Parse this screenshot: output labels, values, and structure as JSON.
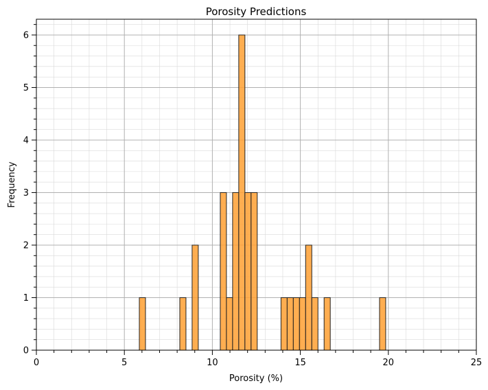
{
  "chart_data": {
    "type": "bar",
    "title": "Porosity Predictions",
    "xlabel": "Porosity (%)",
    "ylabel": "Frequency",
    "xlim": [
      0,
      25
    ],
    "ylim": [
      0,
      6.3
    ],
    "xticks": [
      0,
      5,
      10,
      15,
      20,
      25
    ],
    "yticks": [
      0,
      1,
      2,
      3,
      4,
      5,
      6
    ],
    "grid": true,
    "bar_color": "#ffa033",
    "edge_color": "#222222",
    "bars": [
      {
        "x0": 5.85,
        "x1": 6.2,
        "value": 1
      },
      {
        "x0": 8.15,
        "x1": 8.5,
        "value": 1
      },
      {
        "x0": 8.85,
        "x1": 9.2,
        "value": 2
      },
      {
        "x0": 10.45,
        "x1": 10.8,
        "value": 3
      },
      {
        "x0": 10.8,
        "x1": 11.15,
        "value": 1
      },
      {
        "x0": 11.15,
        "x1": 11.5,
        "value": 3
      },
      {
        "x0": 11.5,
        "x1": 11.85,
        "value": 6
      },
      {
        "x0": 11.85,
        "x1": 12.2,
        "value": 3
      },
      {
        "x0": 12.2,
        "x1": 12.55,
        "value": 3
      },
      {
        "x0": 13.9,
        "x1": 14.25,
        "value": 1
      },
      {
        "x0": 14.25,
        "x1": 14.6,
        "value": 1
      },
      {
        "x0": 14.6,
        "x1": 14.95,
        "value": 1
      },
      {
        "x0": 14.95,
        "x1": 15.3,
        "value": 1
      },
      {
        "x0": 15.3,
        "x1": 15.65,
        "value": 2
      },
      {
        "x0": 15.65,
        "x1": 16.0,
        "value": 1
      },
      {
        "x0": 16.35,
        "x1": 16.7,
        "value": 1
      },
      {
        "x0": 19.5,
        "x1": 19.85,
        "value": 1
      }
    ]
  }
}
